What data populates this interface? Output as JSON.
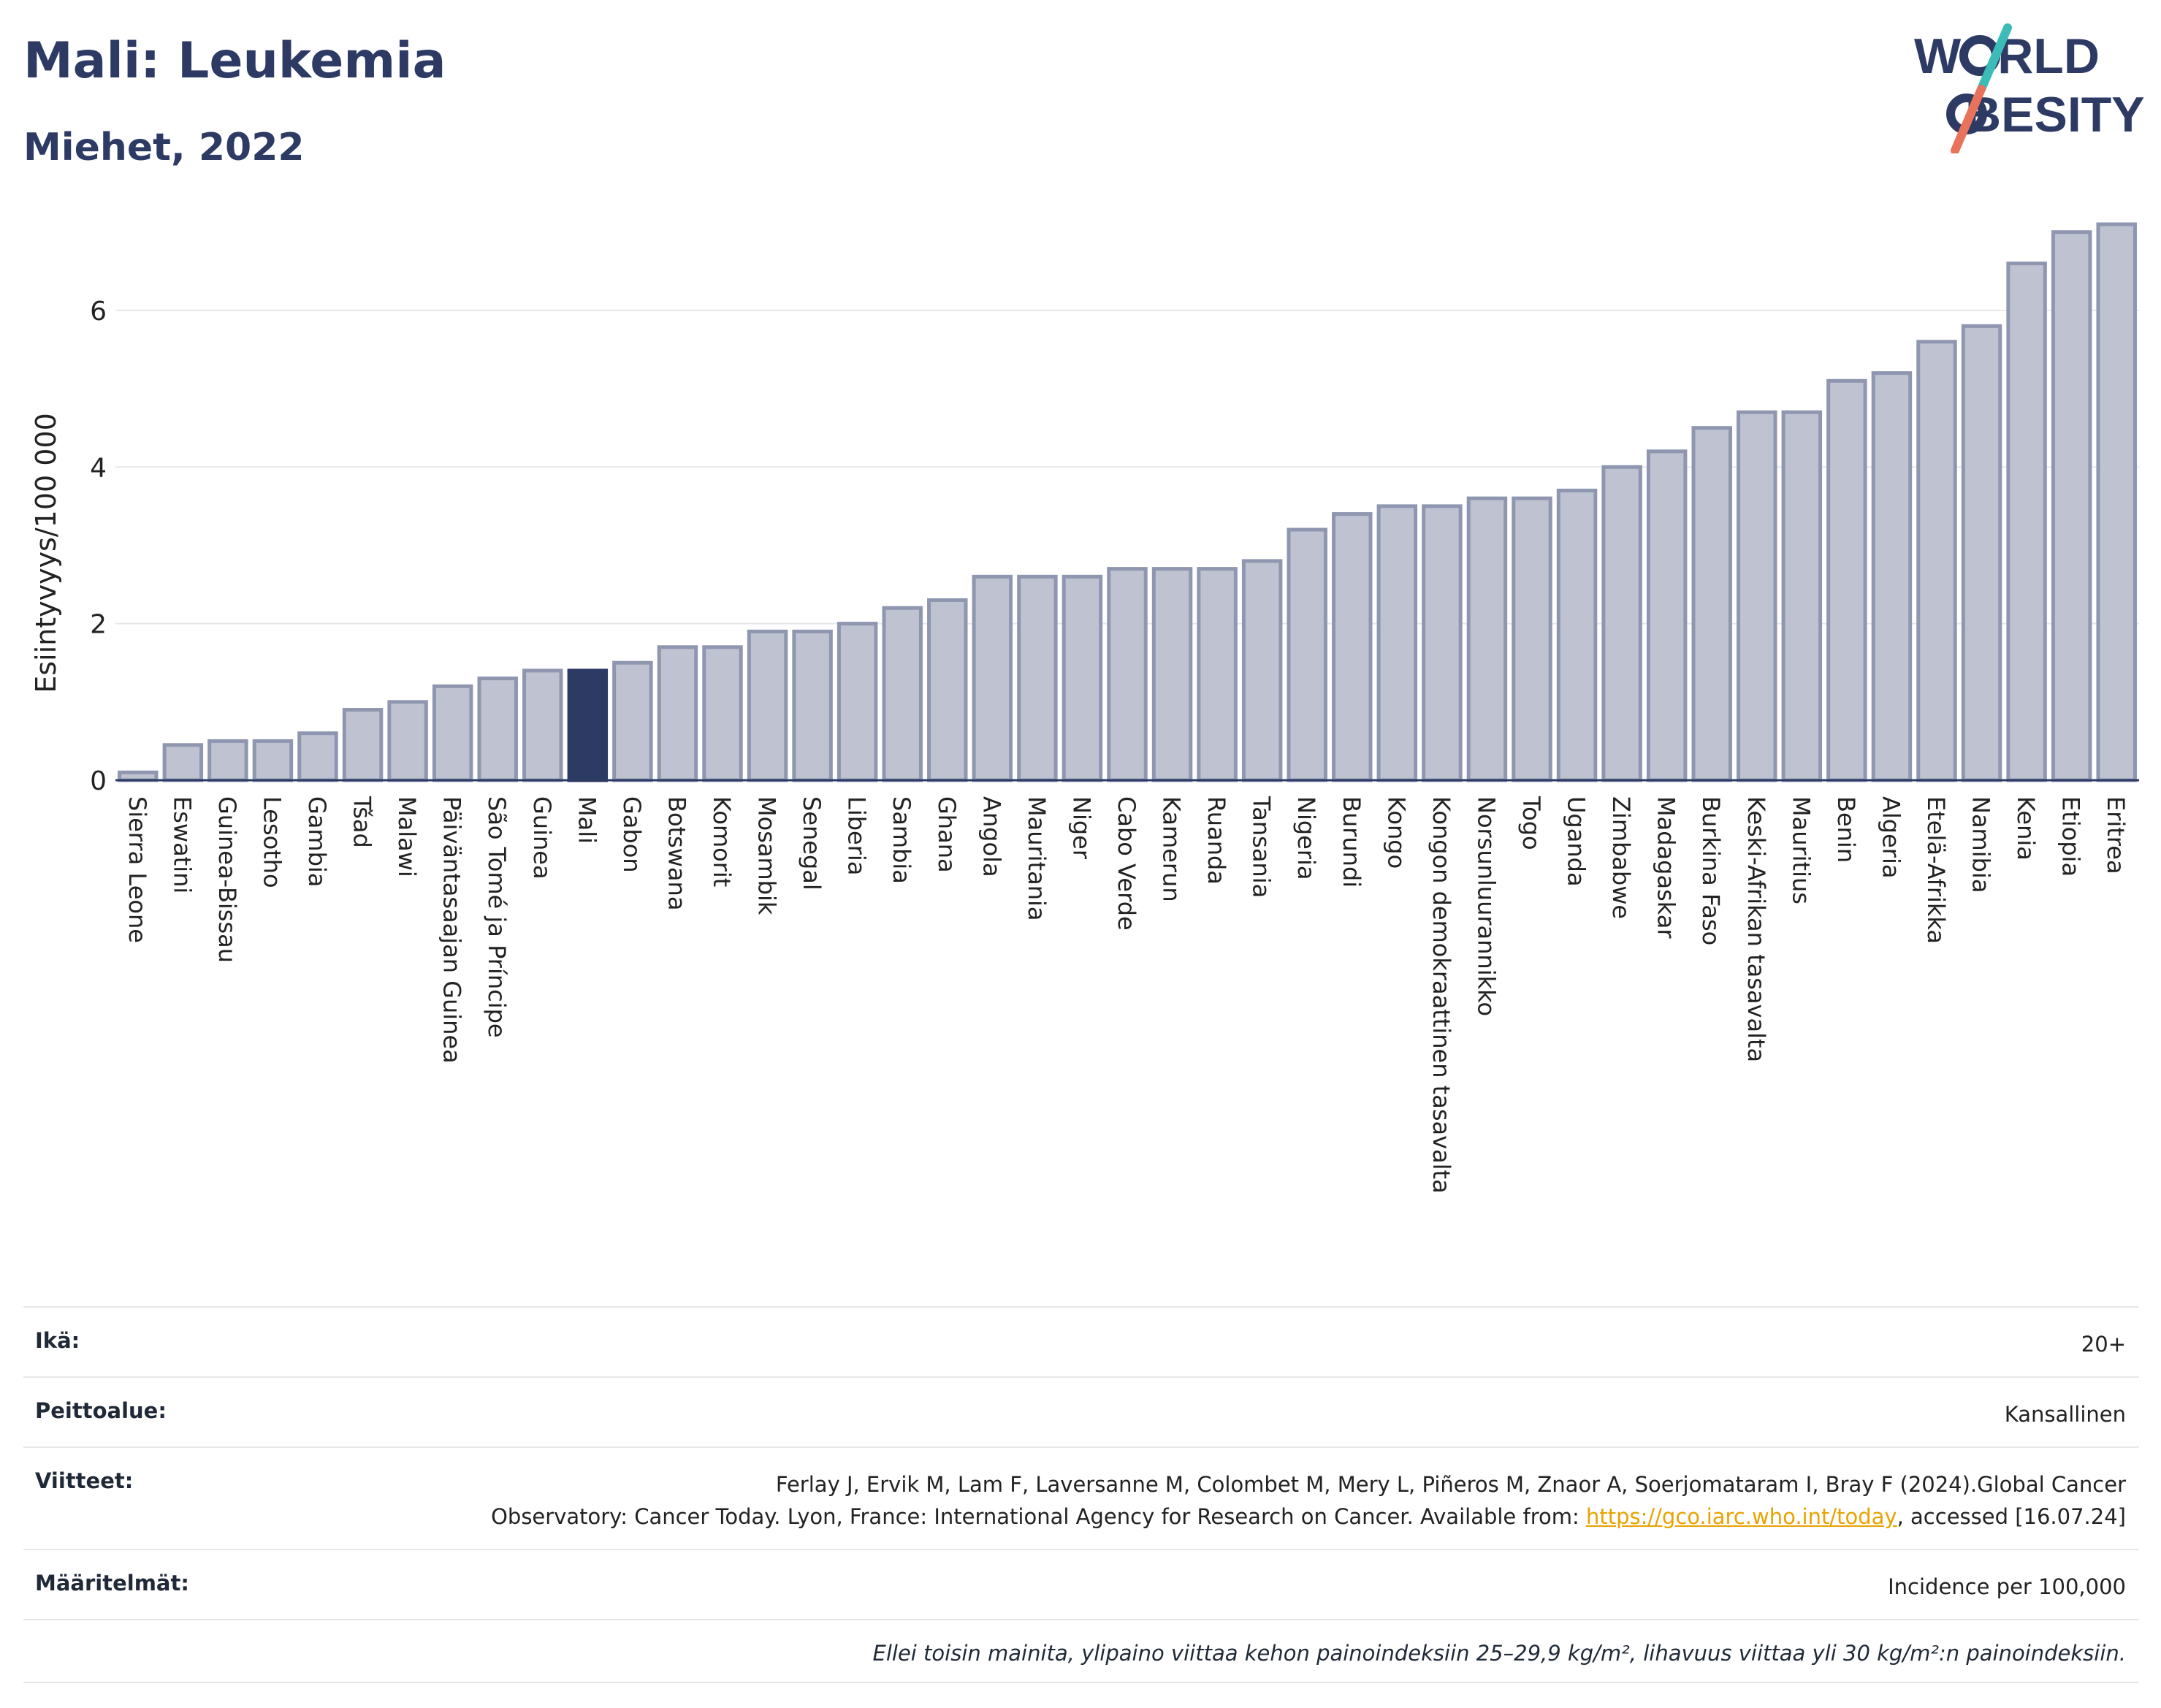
{
  "header": {
    "title": "Mali: Leukemia",
    "subtitle": "Miehet, 2022"
  },
  "logo": {
    "line1_a": "W",
    "line1_b": "RLD",
    "line2_b": "BESITY",
    "accent_colors": [
      "#3bbcb6",
      "#e8735a"
    ]
  },
  "chart_data": {
    "type": "bar",
    "ylabel": "Esiintyvyys/100 000",
    "xlabel": "",
    "ylim": [
      0,
      7.1
    ],
    "yticks": [
      0,
      2,
      4,
      6
    ],
    "grid": true,
    "highlight": "Mali",
    "colors": {
      "bar": "#bec2d1",
      "bar_border": "#8f96b0",
      "highlight": "#2d3a64"
    },
    "categories": [
      "Sierra Leone",
      "Eswatini",
      "Guinea-Bissau",
      "Lesotho",
      "Gambia",
      "Tšad",
      "Malawi",
      "Päiväntasaajan Guinea",
      "São Tomé ja Príncipe",
      "Guinea",
      "Mali",
      "Gabon",
      "Botswana",
      "Komorit",
      "Mosambik",
      "Senegal",
      "Liberia",
      "Sambia",
      "Ghana",
      "Angola",
      "Mauritania",
      "Niger",
      "Cabo Verde",
      "Kamerun",
      "Ruanda",
      "Tansania",
      "Nigeria",
      "Burundi",
      "Kongo",
      "Kongon demokraattinen tasavalta",
      "Norsunluurannikko",
      "Togo",
      "Uganda",
      "Zimbabwe",
      "Madagaskar",
      "Burkina Faso",
      "Keski-Afrikan tasavalta",
      "Mauritius",
      "Benin",
      "Algeria",
      "Etelä-Afrikka",
      "Namibia",
      "Kenia",
      "Etiopia",
      "Eritrea"
    ],
    "values": [
      0.1,
      0.45,
      0.5,
      0.5,
      0.6,
      0.9,
      1.0,
      1.2,
      1.3,
      1.4,
      1.4,
      1.5,
      1.7,
      1.7,
      1.9,
      1.9,
      2.0,
      2.2,
      2.3,
      2.6,
      2.6,
      2.6,
      2.7,
      2.7,
      2.7,
      2.8,
      3.2,
      3.4,
      3.5,
      3.5,
      3.6,
      3.6,
      3.7,
      4.0,
      4.2,
      4.5,
      4.7,
      4.7,
      5.1,
      5.2,
      5.6,
      5.8,
      6.6,
      7.0,
      7.1
    ]
  },
  "info": {
    "age_label": "Ikä:",
    "age_value": "20+",
    "coverage_label": "Peittoalue:",
    "coverage_value": "Kansallinen",
    "refs_label": "Viitteet:",
    "refs_line1": "Ferlay J, Ervik M, Lam F, Laversanne M, Colombet M, Mery L, Piñeros M, Znaor A, Soerjomataram I, Bray F (2024).Global Cancer",
    "refs_line2": "Observatory: Cancer Today. Lyon, France: International Agency for Research on Cancer. Available from: ",
    "refs_link": "https://gco.iarc.who.int/today",
    "refs_line3": ", accessed [16.07.24]",
    "defs_label": "Määritelmät:",
    "defs_value": "Incidence per 100,000",
    "note": "Ellei toisin mainita, ylipaino viittaa kehon painoindeksiin 25–29,9 kg/m², lihavuus viittaa yli 30 kg/m²:n painoindeksiin."
  }
}
